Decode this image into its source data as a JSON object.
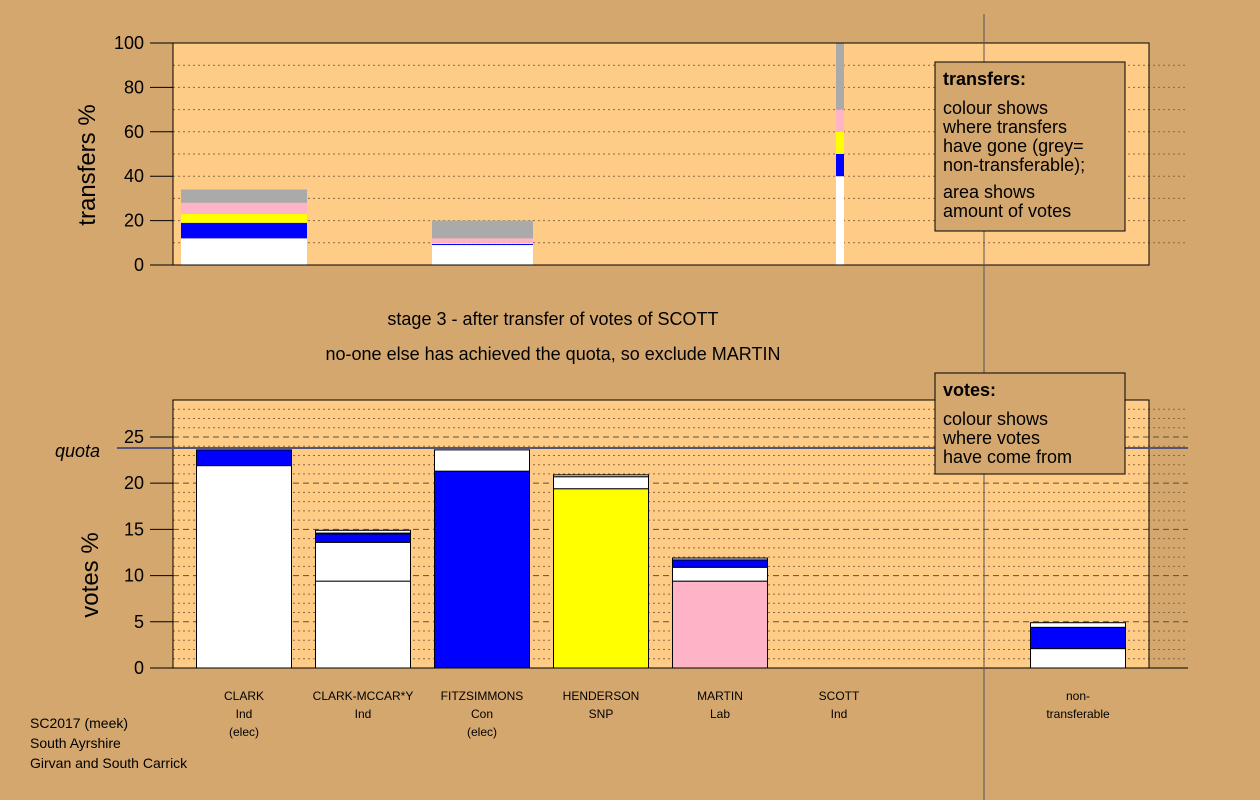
{
  "colors": {
    "background": "#d4a76e",
    "panel": "#ffcc88",
    "white": "#ffffff",
    "blue": "#0000ff",
    "yellow": "#ffff00",
    "pink": "#ffb3c6",
    "grey": "#aaaaaa"
  },
  "title_lines": [
    "stage 3 - after transfer of votes of SCOTT",
    "no-one else has achieved the quota, so exclude MARTIN"
  ],
  "candidates": [
    {
      "name": "CLARK",
      "party": "Ind",
      "status": "(elec)"
    },
    {
      "name": "CLARK-MCCAR*Y",
      "party": "Ind",
      "status": ""
    },
    {
      "name": "FITZSIMMONS",
      "party": "Con",
      "status": "(elec)"
    },
    {
      "name": "HENDERSON",
      "party": "SNP",
      "status": ""
    },
    {
      "name": "MARTIN",
      "party": "Lab",
      "status": ""
    },
    {
      "name": "SCOTT",
      "party": "Ind",
      "status": ""
    },
    {
      "name": "non-",
      "party": "transferable",
      "status": ""
    }
  ],
  "footer": [
    "SC2017 (meek)",
    "South Ayrshire",
    "Girvan and South Carrick"
  ],
  "legend_transfers": {
    "title": "transfers:",
    "lines": [
      "colour shows",
      "where transfers",
      "have gone (grey=",
      "non-transferable);",
      "area shows",
      "amount of votes"
    ]
  },
  "legend_votes": {
    "title": "votes:",
    "lines": [
      "colour shows",
      "where votes",
      "have come from"
    ]
  },
  "chart_data": [
    {
      "type": "bar",
      "ylabel": "transfers %",
      "ylim": [
        0,
        100
      ],
      "yticks": [
        0,
        20,
        40,
        60,
        80,
        100
      ],
      "bars": [
        {
          "candidate": "CLARK",
          "width_share": 0.235,
          "segments": [
            {
              "color": "white",
              "from": 0,
              "to": 12
            },
            {
              "color": "blue",
              "from": 12,
              "to": 19
            },
            {
              "color": "yellow",
              "from": 19,
              "to": 23
            },
            {
              "color": "pink",
              "from": 23,
              "to": 28
            },
            {
              "color": "grey",
              "from": 28,
              "to": 34
            }
          ]
        },
        {
          "candidate": "CLARK-MCCAR*Y",
          "width_share": 0.19,
          "segments": [
            {
              "color": "white",
              "from": 0,
              "to": 9
            },
            {
              "color": "blue",
              "from": 9,
              "to": 9.5
            },
            {
              "color": "yellow",
              "from": 9.5,
              "to": 10
            },
            {
              "color": "pink",
              "from": 10,
              "to": 12
            },
            {
              "color": "grey",
              "from": 12,
              "to": 20
            }
          ]
        },
        {
          "candidate": "SCOTT",
          "width_share": 0.015,
          "segments": [
            {
              "color": "white",
              "from": 0,
              "to": 40
            },
            {
              "color": "blue",
              "from": 40,
              "to": 50
            },
            {
              "color": "yellow",
              "from": 50,
              "to": 60
            },
            {
              "color": "pink",
              "from": 60,
              "to": 70
            },
            {
              "color": "grey",
              "from": 70,
              "to": 100
            }
          ]
        }
      ]
    },
    {
      "type": "bar",
      "ylabel": "votes %",
      "ylim": [
        0,
        29
      ],
      "yticks": [
        0,
        5,
        10,
        15,
        20,
        25
      ],
      "quota_label": "quota",
      "quota": 23.8,
      "bars": [
        {
          "candidate": "CLARK",
          "segments": [
            {
              "color": "white",
              "from": 0,
              "to": 21.9
            },
            {
              "color": "blue",
              "from": 21.9,
              "to": 23.6
            }
          ]
        },
        {
          "candidate": "CLARK-MCCAR*Y",
          "segments": [
            {
              "color": "white",
              "from": 0,
              "to": 9.4
            },
            {
              "color": "white",
              "from": 9.4,
              "to": 13.6
            },
            {
              "color": "blue",
              "from": 13.6,
              "to": 14.5
            },
            {
              "color": "yellow",
              "from": 14.5,
              "to": 14.6
            },
            {
              "color": "white",
              "from": 14.6,
              "to": 14.9
            }
          ]
        },
        {
          "candidate": "FITZSIMMONS",
          "segments": [
            {
              "color": "blue",
              "from": 0,
              "to": 21.3
            },
            {
              "color": "white",
              "from": 21.3,
              "to": 23.6
            }
          ]
        },
        {
          "candidate": "HENDERSON",
          "segments": [
            {
              "color": "yellow",
              "from": 0,
              "to": 19.4
            },
            {
              "color": "white",
              "from": 19.4,
              "to": 20.7
            },
            {
              "color": "white",
              "from": 20.7,
              "to": 20.9
            }
          ]
        },
        {
          "candidate": "MARTIN",
          "segments": [
            {
              "color": "pink",
              "from": 0,
              "to": 9.4
            },
            {
              "color": "white",
              "from": 9.4,
              "to": 10.9
            },
            {
              "color": "blue",
              "from": 10.9,
              "to": 11.7
            },
            {
              "color": "white",
              "from": 11.7,
              "to": 11.9
            }
          ]
        },
        {
          "candidate": "SCOTT",
          "segments": []
        },
        {
          "candidate": "non-transferable",
          "segments": [
            {
              "color": "white",
              "from": 0,
              "to": 2.1
            },
            {
              "color": "blue",
              "from": 2.1,
              "to": 4.4
            },
            {
              "color": "white",
              "from": 4.4,
              "to": 4.9
            }
          ]
        }
      ]
    }
  ]
}
